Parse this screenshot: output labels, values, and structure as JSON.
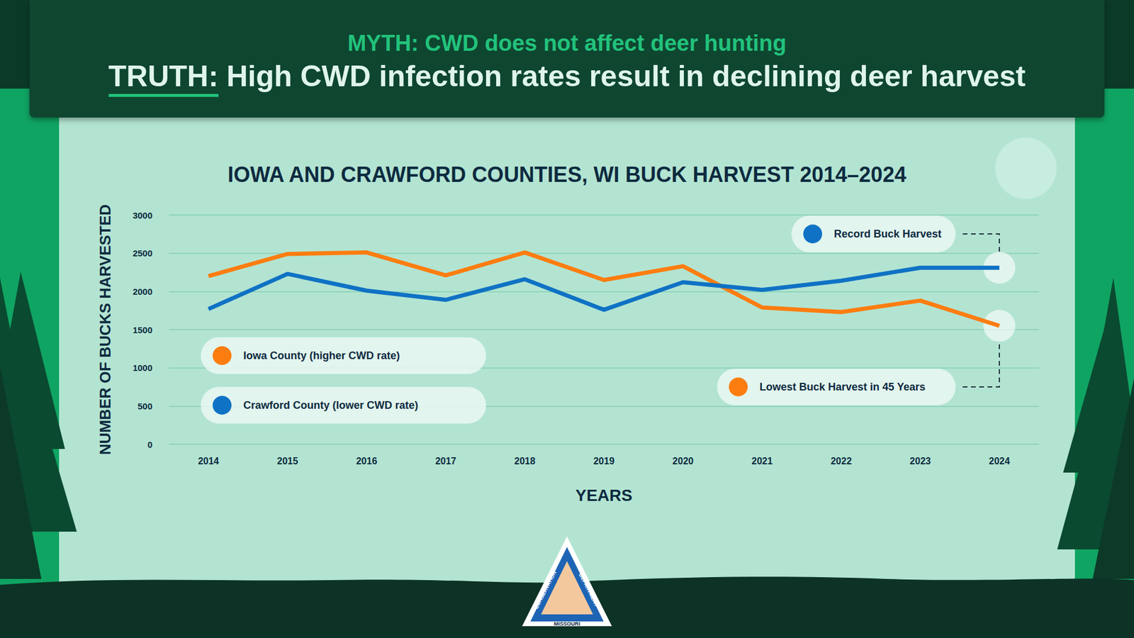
{
  "header": {
    "myth": "MYTH: CWD does not affect deer hunting",
    "truth_label": "TRUTH:",
    "truth": "High CWD infection rates result in declining deer harvest"
  },
  "chart_data": {
    "type": "line",
    "title": "IOWA AND CRAWFORD COUNTIES, WI BUCK HARVEST 2014–2024",
    "x_label": "YEARS",
    "y_label": "NUMBER OF BUCKS HARVESTED",
    "categories": [
      "2014",
      "2015",
      "2016",
      "2017",
      "2018",
      "2019",
      "2020",
      "2021",
      "2022",
      "2023",
      "2024"
    ],
    "series": [
      {
        "name": "Iowa County (higher CWD rate)",
        "color": "#fb7d10",
        "values": [
          2200,
          2490,
          2510,
          2210,
          2510,
          2150,
          2330,
          1790,
          1730,
          1880,
          1550
        ]
      },
      {
        "name": "Crawford County (lower CWD rate)",
        "color": "#0f72c4",
        "values": [
          1770,
          2230,
          2010,
          1890,
          2160,
          1760,
          2120,
          2020,
          2140,
          2310,
          2310
        ]
      }
    ],
    "ylim": [
      0,
      3000
    ],
    "yticks": [
      0,
      500,
      1000,
      1500,
      2000,
      2500,
      3000
    ],
    "grid": true,
    "legend": "left",
    "annotations": [
      {
        "text": "Record Buck Harvest",
        "series": "Crawford County (lower CWD rate)",
        "category": "2024"
      },
      {
        "text": "Lowest Buck Harvest in 45 Years",
        "series": "Iowa County (higher CWD rate)",
        "category": "2024"
      }
    ]
  },
  "logo": {
    "texts": [
      "CONSERVATION",
      "DEPARTMENT",
      "MISSOURI"
    ]
  }
}
